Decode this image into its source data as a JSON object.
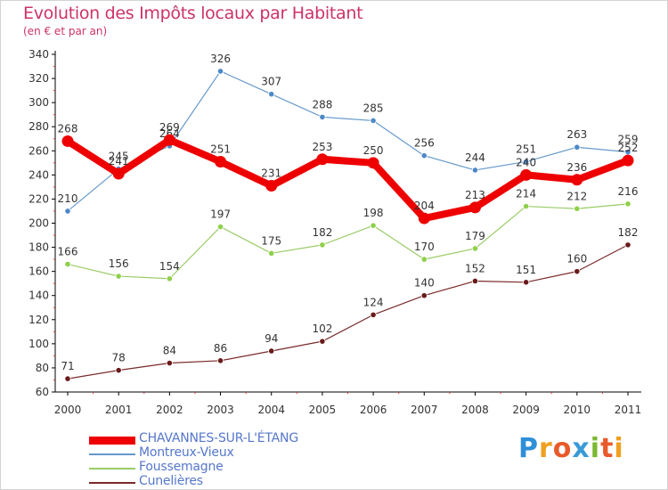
{
  "header": {
    "title": "Evolution des Impôts locaux par Habitant",
    "subtitle": "(en € et par an)"
  },
  "logo": {
    "text": "Proxiti",
    "letters": [
      {
        "ch": "P",
        "color": "#2f8fd8"
      },
      {
        "ch": "r",
        "color": "#f0a020"
      },
      {
        "ch": "o",
        "color": "#e85a2a"
      },
      {
        "ch": "x",
        "color": "#3a9ad8"
      },
      {
        "ch": "i",
        "color": "#7ab830"
      },
      {
        "ch": "t",
        "color": "#e85a2a"
      },
      {
        "ch": "i",
        "color": "#f0a020"
      }
    ]
  },
  "chart_data": {
    "type": "line",
    "title": "Evolution des Impôts locaux par Habitant",
    "subtitle": "(en € et par an)",
    "xlabel": "",
    "ylabel": "",
    "x": [
      "2000",
      "2001",
      "2002",
      "2003",
      "2004",
      "2005",
      "2006",
      "2007",
      "2008",
      "2009",
      "2010",
      "2011"
    ],
    "ylim": [
      60,
      340
    ],
    "yticks": [
      60,
      80,
      100,
      120,
      140,
      160,
      180,
      200,
      220,
      240,
      260,
      280,
      300,
      320,
      340
    ],
    "grid": false,
    "legend_position": "bottom-left",
    "series": [
      {
        "name": "Montreux-Vieux",
        "color": "#6699cc",
        "marker_color": "#4d88c8",
        "width": "thin",
        "values": [
          210,
          245,
          264,
          326,
          307,
          288,
          285,
          256,
          244,
          251,
          263,
          259
        ]
      },
      {
        "name": "Foussemagne",
        "color": "#99cc66",
        "marker_color": "#8fd04a",
        "width": "thin",
        "values": [
          166,
          156,
          154,
          197,
          175,
          182,
          198,
          170,
          179,
          214,
          212,
          216
        ]
      },
      {
        "name": "Cunelières",
        "color": "#7a2a2a",
        "marker_color": "#6a1a1a",
        "width": "thin",
        "values": [
          71,
          78,
          84,
          86,
          94,
          102,
          124,
          140,
          152,
          151,
          160,
          182
        ]
      },
      {
        "name": "CHAVANNES-SUR-L'ÉTANG",
        "color": "#ee0000",
        "marker_color": "#ee0000",
        "width": "thick",
        "values": [
          268,
          241,
          269,
          251,
          231,
          253,
          250,
          204,
          213,
          240,
          236,
          252
        ]
      }
    ],
    "legend_order": [
      "CHAVANNES-SUR-L'ÉTANG",
      "Montreux-Vieux",
      "Foussemagne",
      "Cunelières"
    ]
  }
}
